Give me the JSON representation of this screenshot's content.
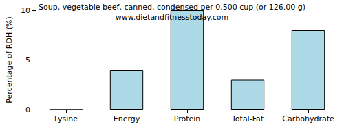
{
  "chart_data": {
    "type": "bar",
    "title": "Soup, vegetable beef, canned, condensed per 0.500 cup (or 126.00 g)",
    "subtitle": "www.dietandfitnesstoday.com",
    "y_label": "Percentage of RDH (%)",
    "categories": [
      "Lysine",
      "Energy",
      "Protein",
      "Total-Fat",
      "Carbohydrate"
    ],
    "values": [
      0,
      4,
      10,
      3,
      8
    ],
    "color": "#add8e6",
    "ylim": [
      0,
      10
    ],
    "yticks": [
      0,
      5,
      10
    ],
    "grid": false
  }
}
